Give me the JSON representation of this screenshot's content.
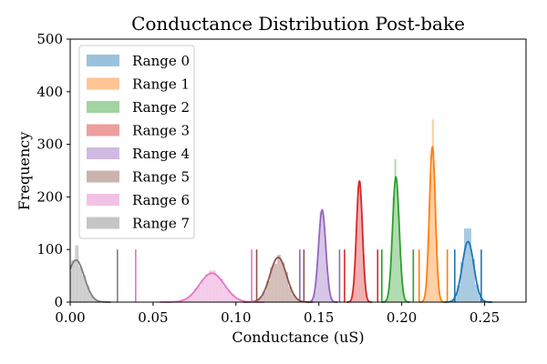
{
  "chart_data": {
    "type": "histogram",
    "title": "Conductance Distribution Post-bake",
    "xlabel": "Conductance (uS)",
    "ylabel": "Frequency",
    "xlim": [
      0.0,
      0.275
    ],
    "ylim": [
      0,
      500
    ],
    "xticks": [
      "0.00",
      "0.05",
      "0.10",
      "0.15",
      "0.20",
      "0.25"
    ],
    "xtick_values": [
      0.0,
      0.05,
      0.1,
      0.15,
      0.2,
      0.25
    ],
    "yticks": [
      "0",
      "100",
      "200",
      "300",
      "400",
      "500"
    ],
    "ytick_values": [
      0,
      100,
      200,
      300,
      400,
      500
    ],
    "legend_position": "top-left",
    "grid": false,
    "threshold_line_height": 100,
    "series": [
      {
        "name": "Range 0",
        "color": "#1f77b4",
        "mean": 0.24,
        "sigma": 0.0035,
        "peak": 115,
        "hist_peak": 140,
        "thresholds": [
          0.232,
          0.248
        ]
      },
      {
        "name": "Range 1",
        "color": "#ff7f0e",
        "mean": 0.2185,
        "sigma": 0.0018,
        "peak": 295,
        "hist_peak": 348,
        "thresholds": [
          0.2105,
          0.2275
        ]
      },
      {
        "name": "Range 2",
        "color": "#2ca02c",
        "mean": 0.1965,
        "sigma": 0.002,
        "peak": 238,
        "hist_peak": 272,
        "thresholds": [
          0.188,
          0.207
        ]
      },
      {
        "name": "Range 3",
        "color": "#d62728",
        "mean": 0.1745,
        "sigma": 0.0018,
        "peak": 230,
        "hist_peak": 230,
        "thresholds": [
          0.1655,
          0.1855
        ]
      },
      {
        "name": "Range 4",
        "color": "#9467bd",
        "mean": 0.152,
        "sigma": 0.0022,
        "peak": 175,
        "hist_peak": 178,
        "thresholds": [
          0.1385,
          0.1625
        ]
      },
      {
        "name": "Range 5",
        "color": "#8c564b",
        "mean": 0.1255,
        "sigma": 0.005,
        "peak": 85,
        "hist_peak": 90,
        "thresholds": [
          0.1125,
          0.141
        ]
      },
      {
        "name": "Range 6",
        "color": "#e377c2",
        "mean": 0.0855,
        "sigma": 0.0075,
        "peak": 55,
        "hist_peak": 60,
        "thresholds": [
          0.0395,
          0.1095
        ]
      },
      {
        "name": "Range 7",
        "color": "#7f7f7f",
        "mean": 0.0035,
        "sigma": 0.005,
        "peak": 80,
        "hist_peak": 108,
        "thresholds": [
          0.0285
        ]
      }
    ]
  }
}
